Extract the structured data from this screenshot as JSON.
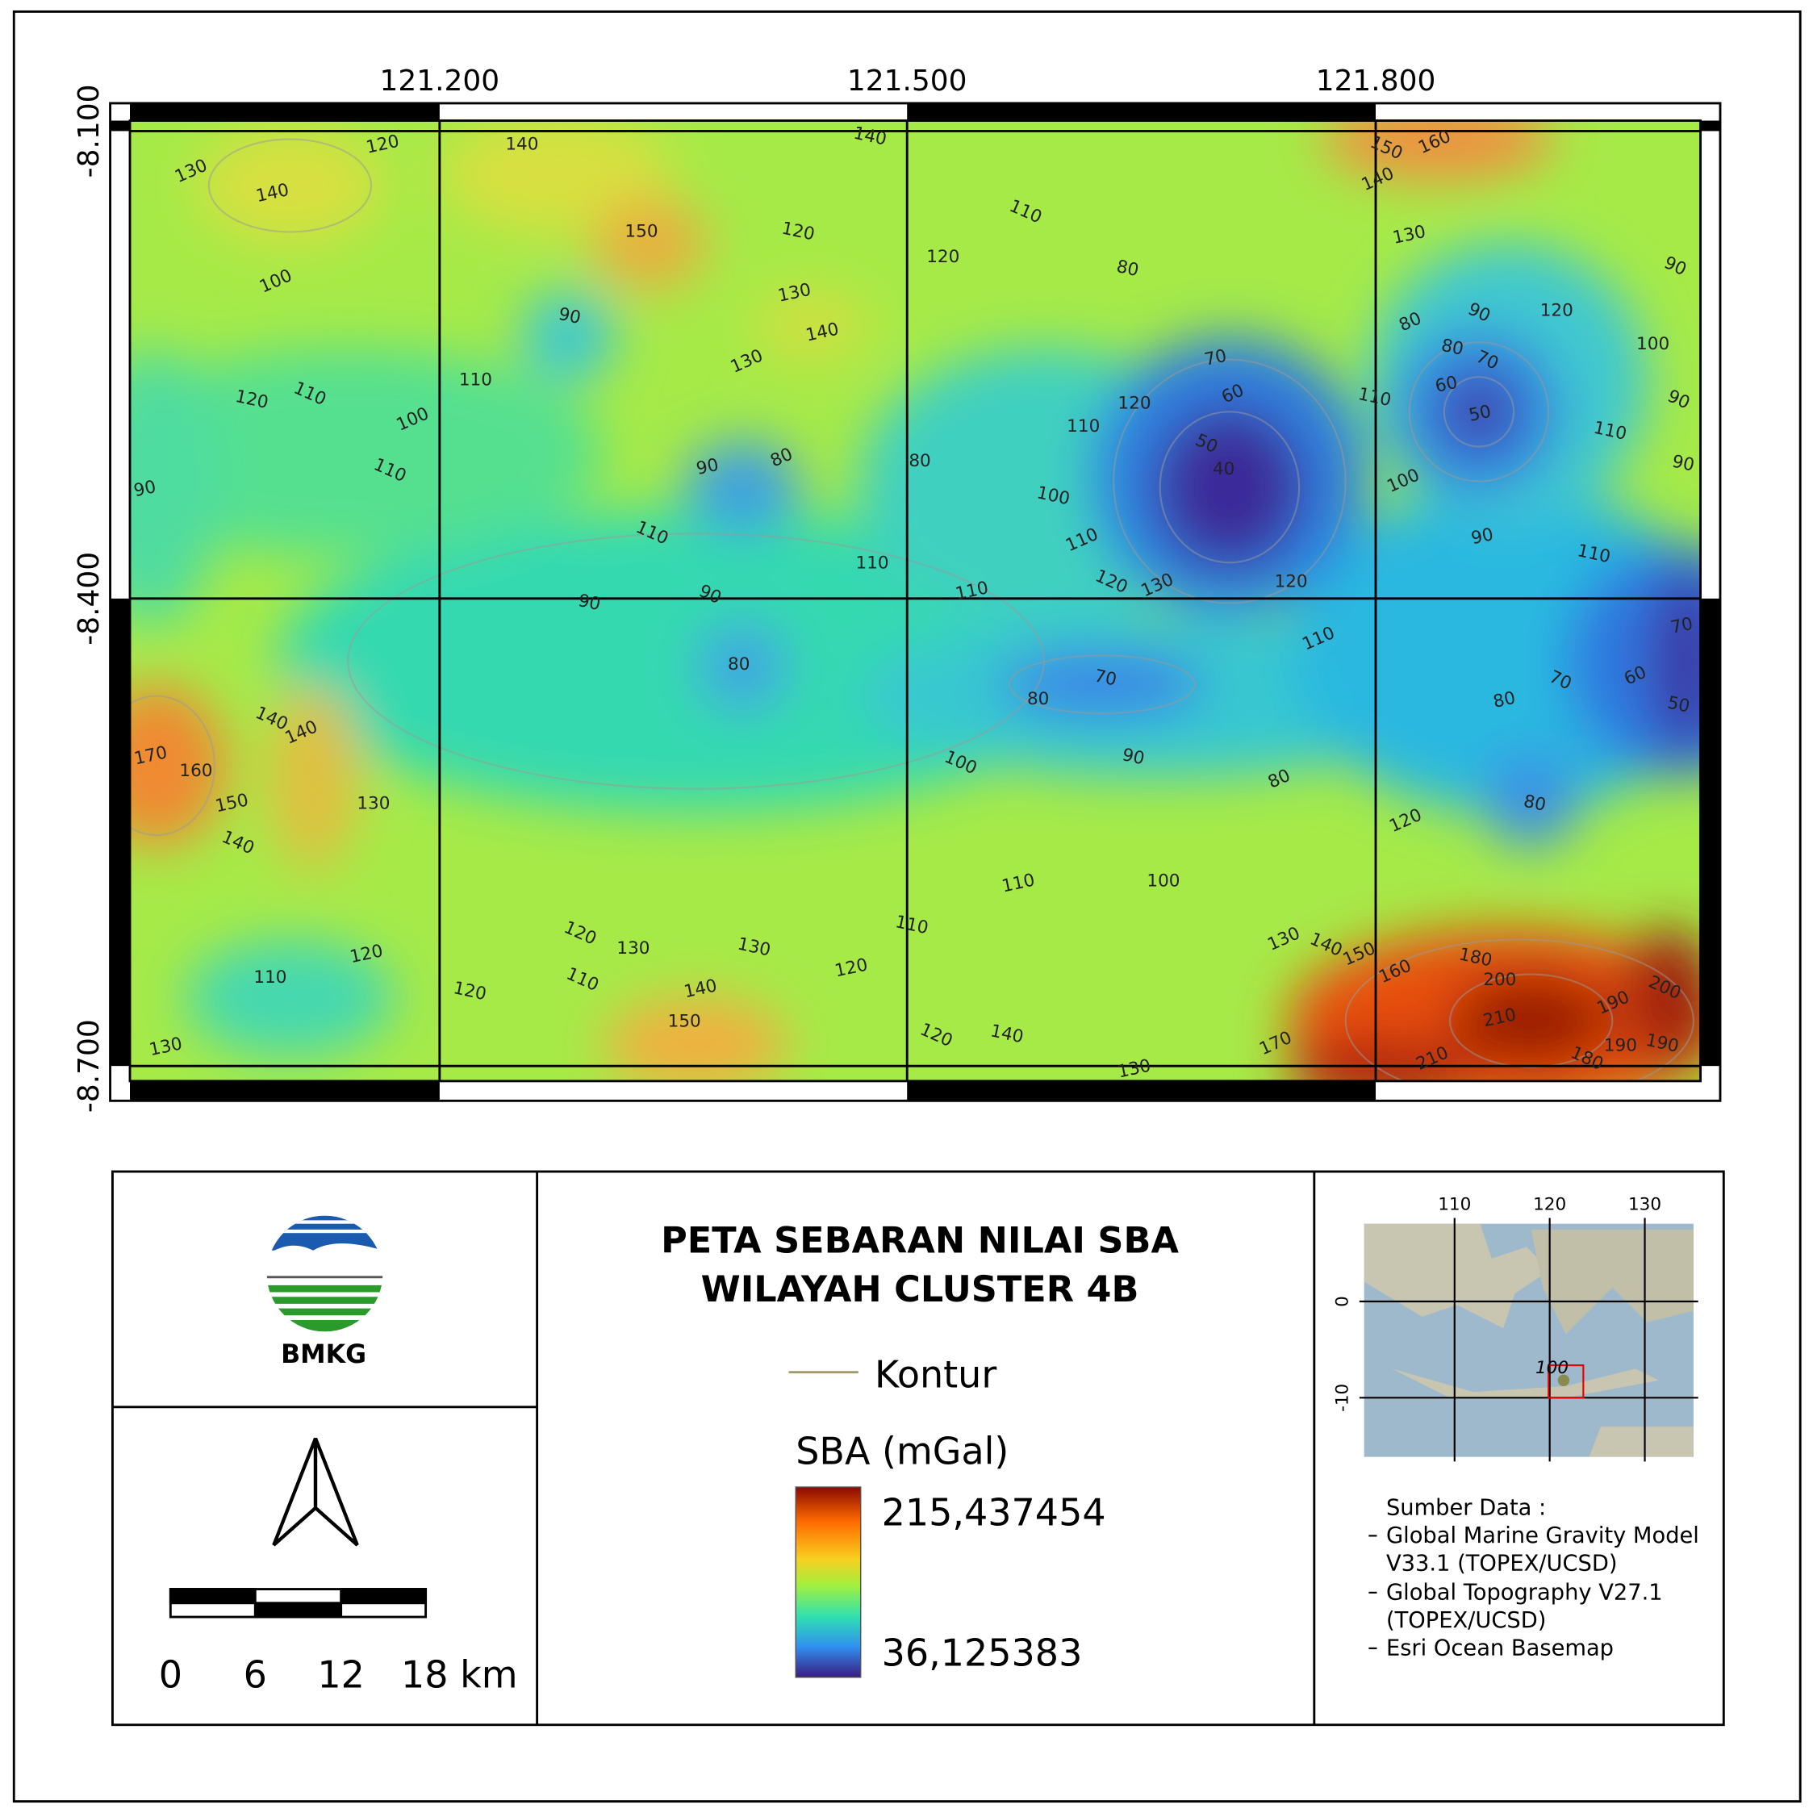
{
  "map": {
    "x_labels": [
      "121.200",
      "121.500",
      "121.800"
    ],
    "y_labels": [
      "-8.100",
      "-8.400",
      "-8.700"
    ],
    "contour_labels": [
      130,
      120,
      140,
      140,
      150,
      160,
      140,
      150,
      120,
      110,
      140,
      130,
      120,
      80,
      90,
      100,
      130,
      120,
      90,
      90,
      80,
      140,
      100,
      80,
      70,
      130,
      70,
      110,
      120,
      110,
      60,
      60,
      120,
      110,
      90,
      100,
      50,
      110,
      110,
      50,
      80,
      90,
      80,
      90,
      110,
      100,
      90,
      40,
      100,
      110,
      110,
      90,
      110,
      110,
      120,
      130,
      110,
      120,
      90,
      90,
      110,
      70,
      80,
      70,
      70,
      60,
      80,
      80,
      50,
      140,
      140,
      170,
      160,
      90,
      100,
      80,
      150,
      130,
      80,
      140,
      120,
      110,
      100,
      110,
      120,
      130,
      120,
      130,
      130,
      140,
      150,
      120,
      110,
      180,
      110,
      160,
      140,
      200,
      120,
      200,
      190,
      210,
      150,
      140,
      120,
      170,
      130,
      190,
      190,
      180,
      210,
      130
    ]
  },
  "legend": {
    "title_lines": [
      "PETA SEBARAN NILAI SBA",
      "WILAYAH CLUSTER 4B"
    ],
    "contour_label": "Kontur",
    "scale_title": "SBA (mGal)",
    "max_label": "215,437454",
    "min_label": "36,125383"
  },
  "logo": {
    "text": "BMKG"
  },
  "scale_bar": {
    "labels": [
      "0",
      "6",
      "12",
      "18 km"
    ]
  },
  "inset": {
    "x_labels": [
      "110",
      "120",
      "130"
    ],
    "y_labels": [
      "0",
      "-10"
    ],
    "label": "100"
  },
  "sources": {
    "title": "Sumber Data :",
    "lines": [
      "Global Marine Gravity Model",
      "V33.1 (TOPEX/UCSD)",
      "Global Topography V27.1",
      "(TOPEX/UCSD)",
      "Esri Ocean Basemap"
    ]
  }
}
